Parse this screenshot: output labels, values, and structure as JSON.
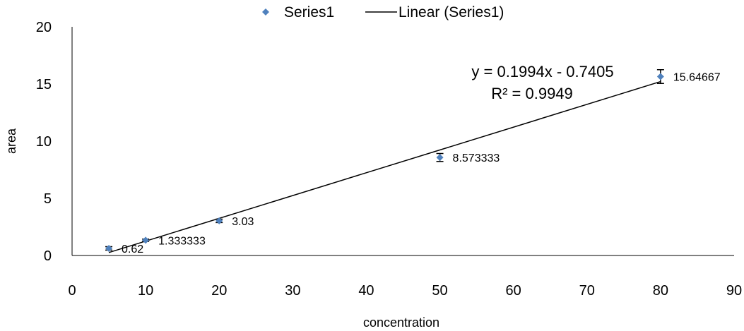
{
  "chart_data": {
    "type": "scatter",
    "xlabel": "concentration",
    "ylabel": "area",
    "xlim": [
      0,
      90
    ],
    "ylim": [
      0,
      20
    ],
    "x_ticks": [
      0,
      10,
      20,
      30,
      40,
      50,
      60,
      70,
      80,
      90
    ],
    "y_ticks": [
      0,
      5,
      10,
      15,
      20
    ],
    "grid": false,
    "legend_position": "top",
    "series": [
      {
        "name": "Series1",
        "marker": "diamond",
        "color": "#4f81bd",
        "x": [
          5,
          10,
          20,
          50,
          80
        ],
        "y": [
          0.62,
          1.333333,
          3.03,
          8.573333,
          15.64667
        ],
        "data_labels": [
          "0.62",
          "1.333333",
          "3.03",
          "8.573333",
          "15.64667"
        ],
        "error": [
          0.15,
          0.1,
          0.15,
          0.35,
          0.6
        ]
      }
    ],
    "trendline": {
      "name": "Linear (Series1)",
      "type": "linear",
      "slope": 0.1994,
      "intercept": -0.7405,
      "x_range": [
        5,
        80
      ],
      "color": "#000000",
      "equation_text": "y = 0.1994x - 0.7405",
      "r2_text": "R² = 0.9949"
    }
  }
}
